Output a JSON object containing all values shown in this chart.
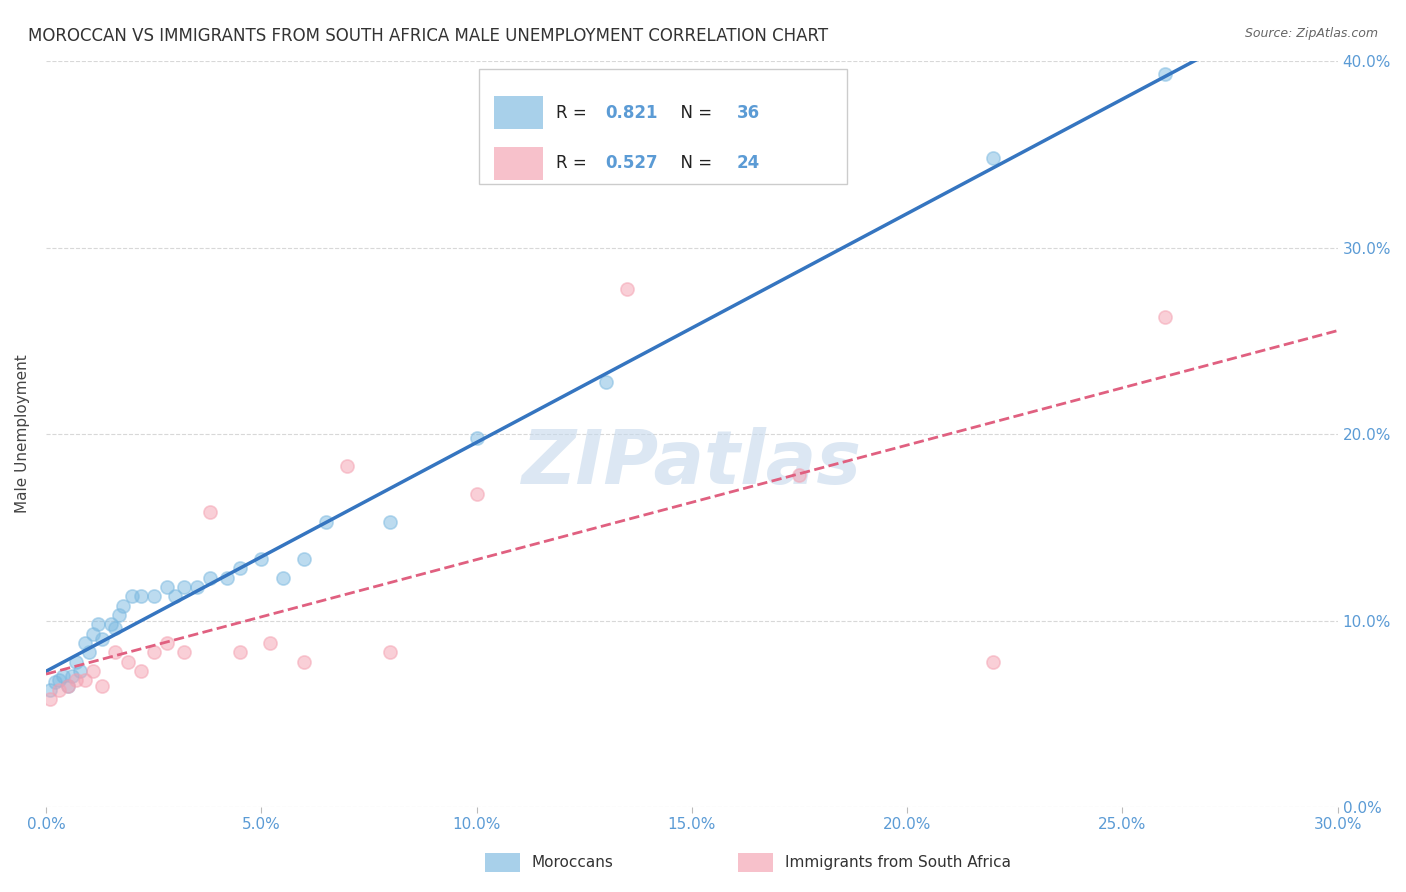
{
  "title": "MOROCCAN VS IMMIGRANTS FROM SOUTH AFRICA MALE UNEMPLOYMENT CORRELATION CHART",
  "source": "Source: ZipAtlas.com",
  "ylabel": "Male Unemployment",
  "xlim": [
    0.0,
    0.3
  ],
  "ylim": [
    0.0,
    0.4
  ],
  "xticks": [
    0.0,
    0.05,
    0.1,
    0.15,
    0.2,
    0.25,
    0.3
  ],
  "yticks": [
    0.0,
    0.1,
    0.2,
    0.3,
    0.4
  ],
  "background_color": "#ffffff",
  "watermark": "ZIPatlas",
  "moroccan_color": "#7ab8e0",
  "sa_color": "#f4a0b0",
  "moroccan_line_color": "#3575c0",
  "sa_line_color": "#e06080",
  "moroccan_R": 0.821,
  "moroccan_N": 36,
  "sa_R": 0.527,
  "sa_N": 24,
  "moroccan_x": [
    0.001,
    0.002,
    0.003,
    0.004,
    0.005,
    0.006,
    0.007,
    0.008,
    0.009,
    0.01,
    0.011,
    0.012,
    0.013,
    0.015,
    0.016,
    0.017,
    0.018,
    0.02,
    0.022,
    0.025,
    0.028,
    0.03,
    0.032,
    0.035,
    0.038,
    0.042,
    0.045,
    0.05,
    0.055,
    0.06,
    0.065,
    0.08,
    0.1,
    0.13,
    0.22,
    0.26
  ],
  "moroccan_y": [
    0.063,
    0.067,
    0.068,
    0.07,
    0.065,
    0.07,
    0.078,
    0.073,
    0.088,
    0.083,
    0.093,
    0.098,
    0.09,
    0.098,
    0.096,
    0.103,
    0.108,
    0.113,
    0.113,
    0.113,
    0.118,
    0.113,
    0.118,
    0.118,
    0.123,
    0.123,
    0.128,
    0.133,
    0.123,
    0.133,
    0.153,
    0.153,
    0.198,
    0.228,
    0.348,
    0.393
  ],
  "sa_x": [
    0.001,
    0.003,
    0.005,
    0.007,
    0.009,
    0.011,
    0.013,
    0.016,
    0.019,
    0.022,
    0.025,
    0.028,
    0.032,
    0.038,
    0.045,
    0.052,
    0.06,
    0.07,
    0.08,
    0.1,
    0.135,
    0.175,
    0.22,
    0.26
  ],
  "sa_y": [
    0.058,
    0.063,
    0.065,
    0.068,
    0.068,
    0.073,
    0.065,
    0.083,
    0.078,
    0.073,
    0.083,
    0.088,
    0.083,
    0.158,
    0.083,
    0.088,
    0.078,
    0.183,
    0.083,
    0.168,
    0.278,
    0.178,
    0.078,
    0.263
  ],
  "grid_color": "#d8d8d8",
  "tick_color": "#5b9bd5",
  "title_fontsize": 12,
  "axis_label_fontsize": 11,
  "tick_fontsize": 11
}
